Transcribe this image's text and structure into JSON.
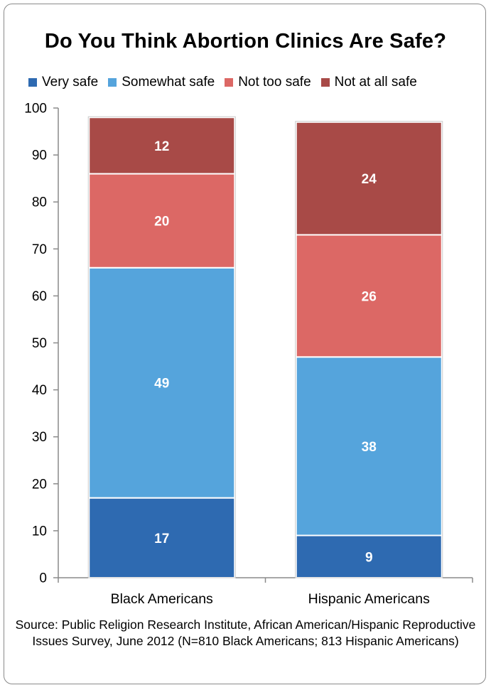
{
  "chart_data": {
    "type": "bar",
    "stacked": true,
    "title": "Do You Think Abortion Clinics Are Safe?",
    "categories": [
      "Black Americans",
      "Hispanic Americans"
    ],
    "series": [
      {
        "name": "Very safe",
        "color": "#2e6ab1",
        "values": [
          17,
          9
        ]
      },
      {
        "name": "Somewhat safe",
        "color": "#55a4dc",
        "values": [
          49,
          38
        ]
      },
      {
        "name": "Not too safe",
        "color": "#dc6865",
        "values": [
          20,
          26
        ]
      },
      {
        "name": "Not at all safe",
        "color": "#a84a47",
        "values": [
          12,
          24
        ]
      }
    ],
    "ylim": [
      0,
      100
    ],
    "yticks": [
      0,
      10,
      20,
      30,
      40,
      50,
      60,
      70,
      80,
      90,
      100
    ],
    "grid": false,
    "legend_position": "top",
    "source": "Source: Public Religion Research Institute, African American/Hispanic Reproductive Issues Survey, June 2012 (N=810 Black Americans; 813 Hispanic Americans)"
  }
}
